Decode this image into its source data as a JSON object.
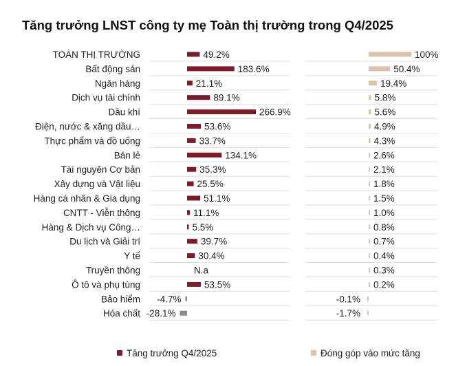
{
  "title": "Tăng trưởng LNST công ty mẹ Toàn thị trường trong Q4/2025",
  "colors": {
    "growth": "#7b1c2a",
    "growth_negative": "#8c8c8c",
    "contribution": "#dcc2aa",
    "gridline": "#dddddd"
  },
  "legend": {
    "growth": "Tăng trưởng Q4/2025",
    "contribution": "Đóng góp vào mức tăng"
  },
  "chart_data": {
    "type": "bar",
    "orientation": "horizontal",
    "title": "Tăng trưởng LNST công ty mẹ Toàn thị trường trong Q4/2025",
    "legend_position": "bottom",
    "categories": [
      "TOÀN THỊ TRƯỜNG",
      "Bất động sản",
      "Ngân hàng",
      "Dịch vụ tài chính",
      "Dầu khí",
      "Điện, nước & xăng dầu…",
      "Thực phẩm và đồ uống",
      "Bán lẻ",
      "Tài nguyên Cơ bản",
      "Xây dựng và Vật liệu",
      "Hàng cá nhân & Gia dụng",
      "CNTT - Viễn thông",
      "Hàng & Dịch vụ Công…",
      "Du lịch và Giải trí",
      "Y tế",
      "Truyền thông",
      "Ô tô và phụ tùng",
      "Bảo hiểm",
      "Hóa chất"
    ],
    "series": [
      {
        "name": "Tăng trưởng Q4/2025",
        "unit": "%",
        "values": [
          49.2,
          183.6,
          21.1,
          89.1,
          266.9,
          53.6,
          33.7,
          134.1,
          35.3,
          25.5,
          51.1,
          11.1,
          5.5,
          39.7,
          30.4,
          null,
          53.5,
          -4.7,
          -28.1
        ],
        "labels": [
          "49.2%",
          "183.6%",
          "21.1%",
          "89.1%",
          "266.9%",
          "53.6%",
          "33.7%",
          "134.1%",
          "35.3%",
          "25.5%",
          "51.1%",
          "11.1%",
          "5.5%",
          "39.7%",
          "30.4%",
          "N.a",
          "53.5%",
          "-4.7%",
          "-28.1%"
        ]
      },
      {
        "name": "Đóng góp vào mức tăng",
        "unit": "%",
        "values": [
          100,
          50.4,
          19.4,
          5.8,
          5.6,
          4.9,
          4.3,
          2.6,
          2.1,
          1.8,
          1.5,
          1.0,
          0.8,
          0.7,
          0.4,
          0.3,
          0.2,
          -0.1,
          -1.7
        ],
        "labels": [
          "100%",
          "50.4%",
          "19.4%",
          "5.8%",
          "5.6%",
          "4.9%",
          "4.3%",
          "2.6%",
          "2.1%",
          "1.8%",
          "1.5%",
          "1.0%",
          "0.8%",
          "0.7%",
          "0.4%",
          "0.3%",
          "0.2%",
          "-0.1%",
          "-1.7%"
        ]
      }
    ]
  }
}
